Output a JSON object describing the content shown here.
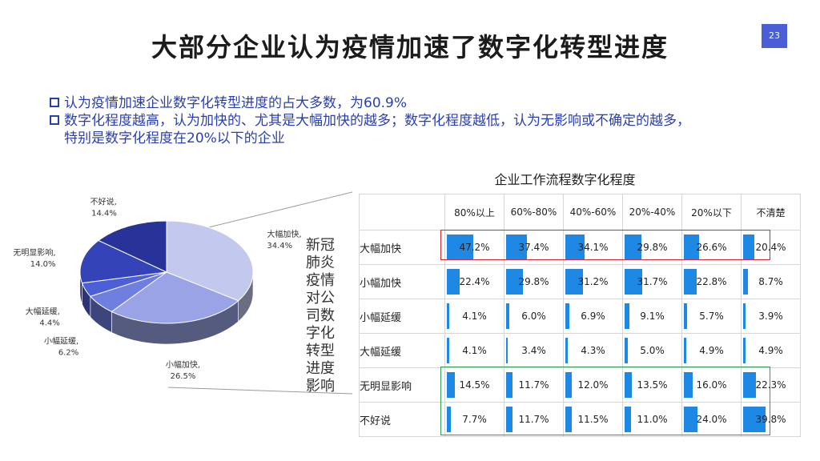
{
  "page": {
    "title": "大部分企业认为疫情加速了数字化转型进度",
    "number": "23"
  },
  "bullets": {
    "b1": "认为疫情加速企业数字化转型进度的占大多数，为60.9%",
    "b2": "数字化程度越高，认为加快的、尤其是大幅加快的越多；数字化程度越低，认为无影响或不确定的越多，",
    "b2_cont": "特别是数字化程度在20%以下的企业"
  },
  "side_label": "新冠肺炎疫情对公司数字化转型进度影响",
  "colors": {
    "accent": "#2a3fae",
    "bar": "#1e88e5",
    "red_box": "#d9262f",
    "green_box": "#2e9e4f"
  },
  "chart_data": [
    {
      "type": "pie",
      "title": "",
      "slices": [
        {
          "name": "大幅加快",
          "value": 34.4,
          "label": "大幅加快,",
          "pct": "34.4%",
          "color": "#c3c8ee"
        },
        {
          "name": "小幅加快",
          "value": 26.5,
          "label": "小幅加快,",
          "pct": "26.5%",
          "color": "#9aa3e6"
        },
        {
          "name": "小幅延缓",
          "value": 6.2,
          "label": "小幅延缓,",
          "pct": "6.2%",
          "color": "#6f7fe0"
        },
        {
          "name": "大幅延缓",
          "value": 4.4,
          "label": "大幅延缓,",
          "pct": "4.4%",
          "color": "#4d5fd6"
        },
        {
          "name": "无明显影响",
          "value": 14.0,
          "label": "无明显影响,",
          "pct": "14.0%",
          "color": "#3443b8"
        },
        {
          "name": "不好说",
          "value": 14.4,
          "label": "不好说,",
          "pct": "14.4%",
          "color": "#28339a"
        }
      ]
    },
    {
      "type": "table",
      "title": "企业工作流程数字化程度",
      "columns": [
        "80%以上",
        "60%-80%",
        "40%-60%",
        "20%-40%",
        "20%以下",
        "不清楚"
      ],
      "rows": [
        {
          "label": "大幅加快",
          "values": [
            47.2,
            37.4,
            34.1,
            29.8,
            26.6,
            20.4
          ],
          "texts": [
            "47.2%",
            "37.4%",
            "34.1%",
            "29.8%",
            "26.6%",
            "20.4%"
          ]
        },
        {
          "label": "小幅加快",
          "values": [
            22.4,
            29.8,
            31.2,
            31.7,
            22.8,
            8.7
          ],
          "texts": [
            "22.4%",
            "29.8%",
            "31.2%",
            "31.7%",
            "22.8%",
            "8.7%"
          ]
        },
        {
          "label": "小幅延缓",
          "values": [
            4.1,
            6.0,
            6.9,
            9.1,
            5.7,
            3.9
          ],
          "texts": [
            "4.1%",
            "6.0%",
            "6.9%",
            "9.1%",
            "5.7%",
            "3.9%"
          ]
        },
        {
          "label": "大幅延缓",
          "values": [
            4.1,
            3.4,
            4.3,
            5.0,
            4.9,
            4.9
          ],
          "texts": [
            "4.1%",
            "3.4%",
            "4.3%",
            "5.0%",
            "4.9%",
            "4.9%"
          ]
        },
        {
          "label": "无明显影响",
          "values": [
            14.5,
            11.7,
            12.0,
            13.5,
            16.0,
            22.3
          ],
          "texts": [
            "14.5%",
            "11.7%",
            "12.0%",
            "13.5%",
            "16.0%",
            "22.3%"
          ]
        },
        {
          "label": "不好说",
          "values": [
            7.7,
            11.7,
            11.5,
            11.0,
            24.0,
            39.8
          ],
          "texts": [
            "7.7%",
            "11.7%",
            "11.5%",
            "11.0%",
            "24.0%",
            "39.8%"
          ]
        }
      ],
      "highlight_rows": {
        "red": [
          "大幅加快"
        ],
        "green": [
          "无明显影响",
          "不好说"
        ]
      }
    }
  ]
}
